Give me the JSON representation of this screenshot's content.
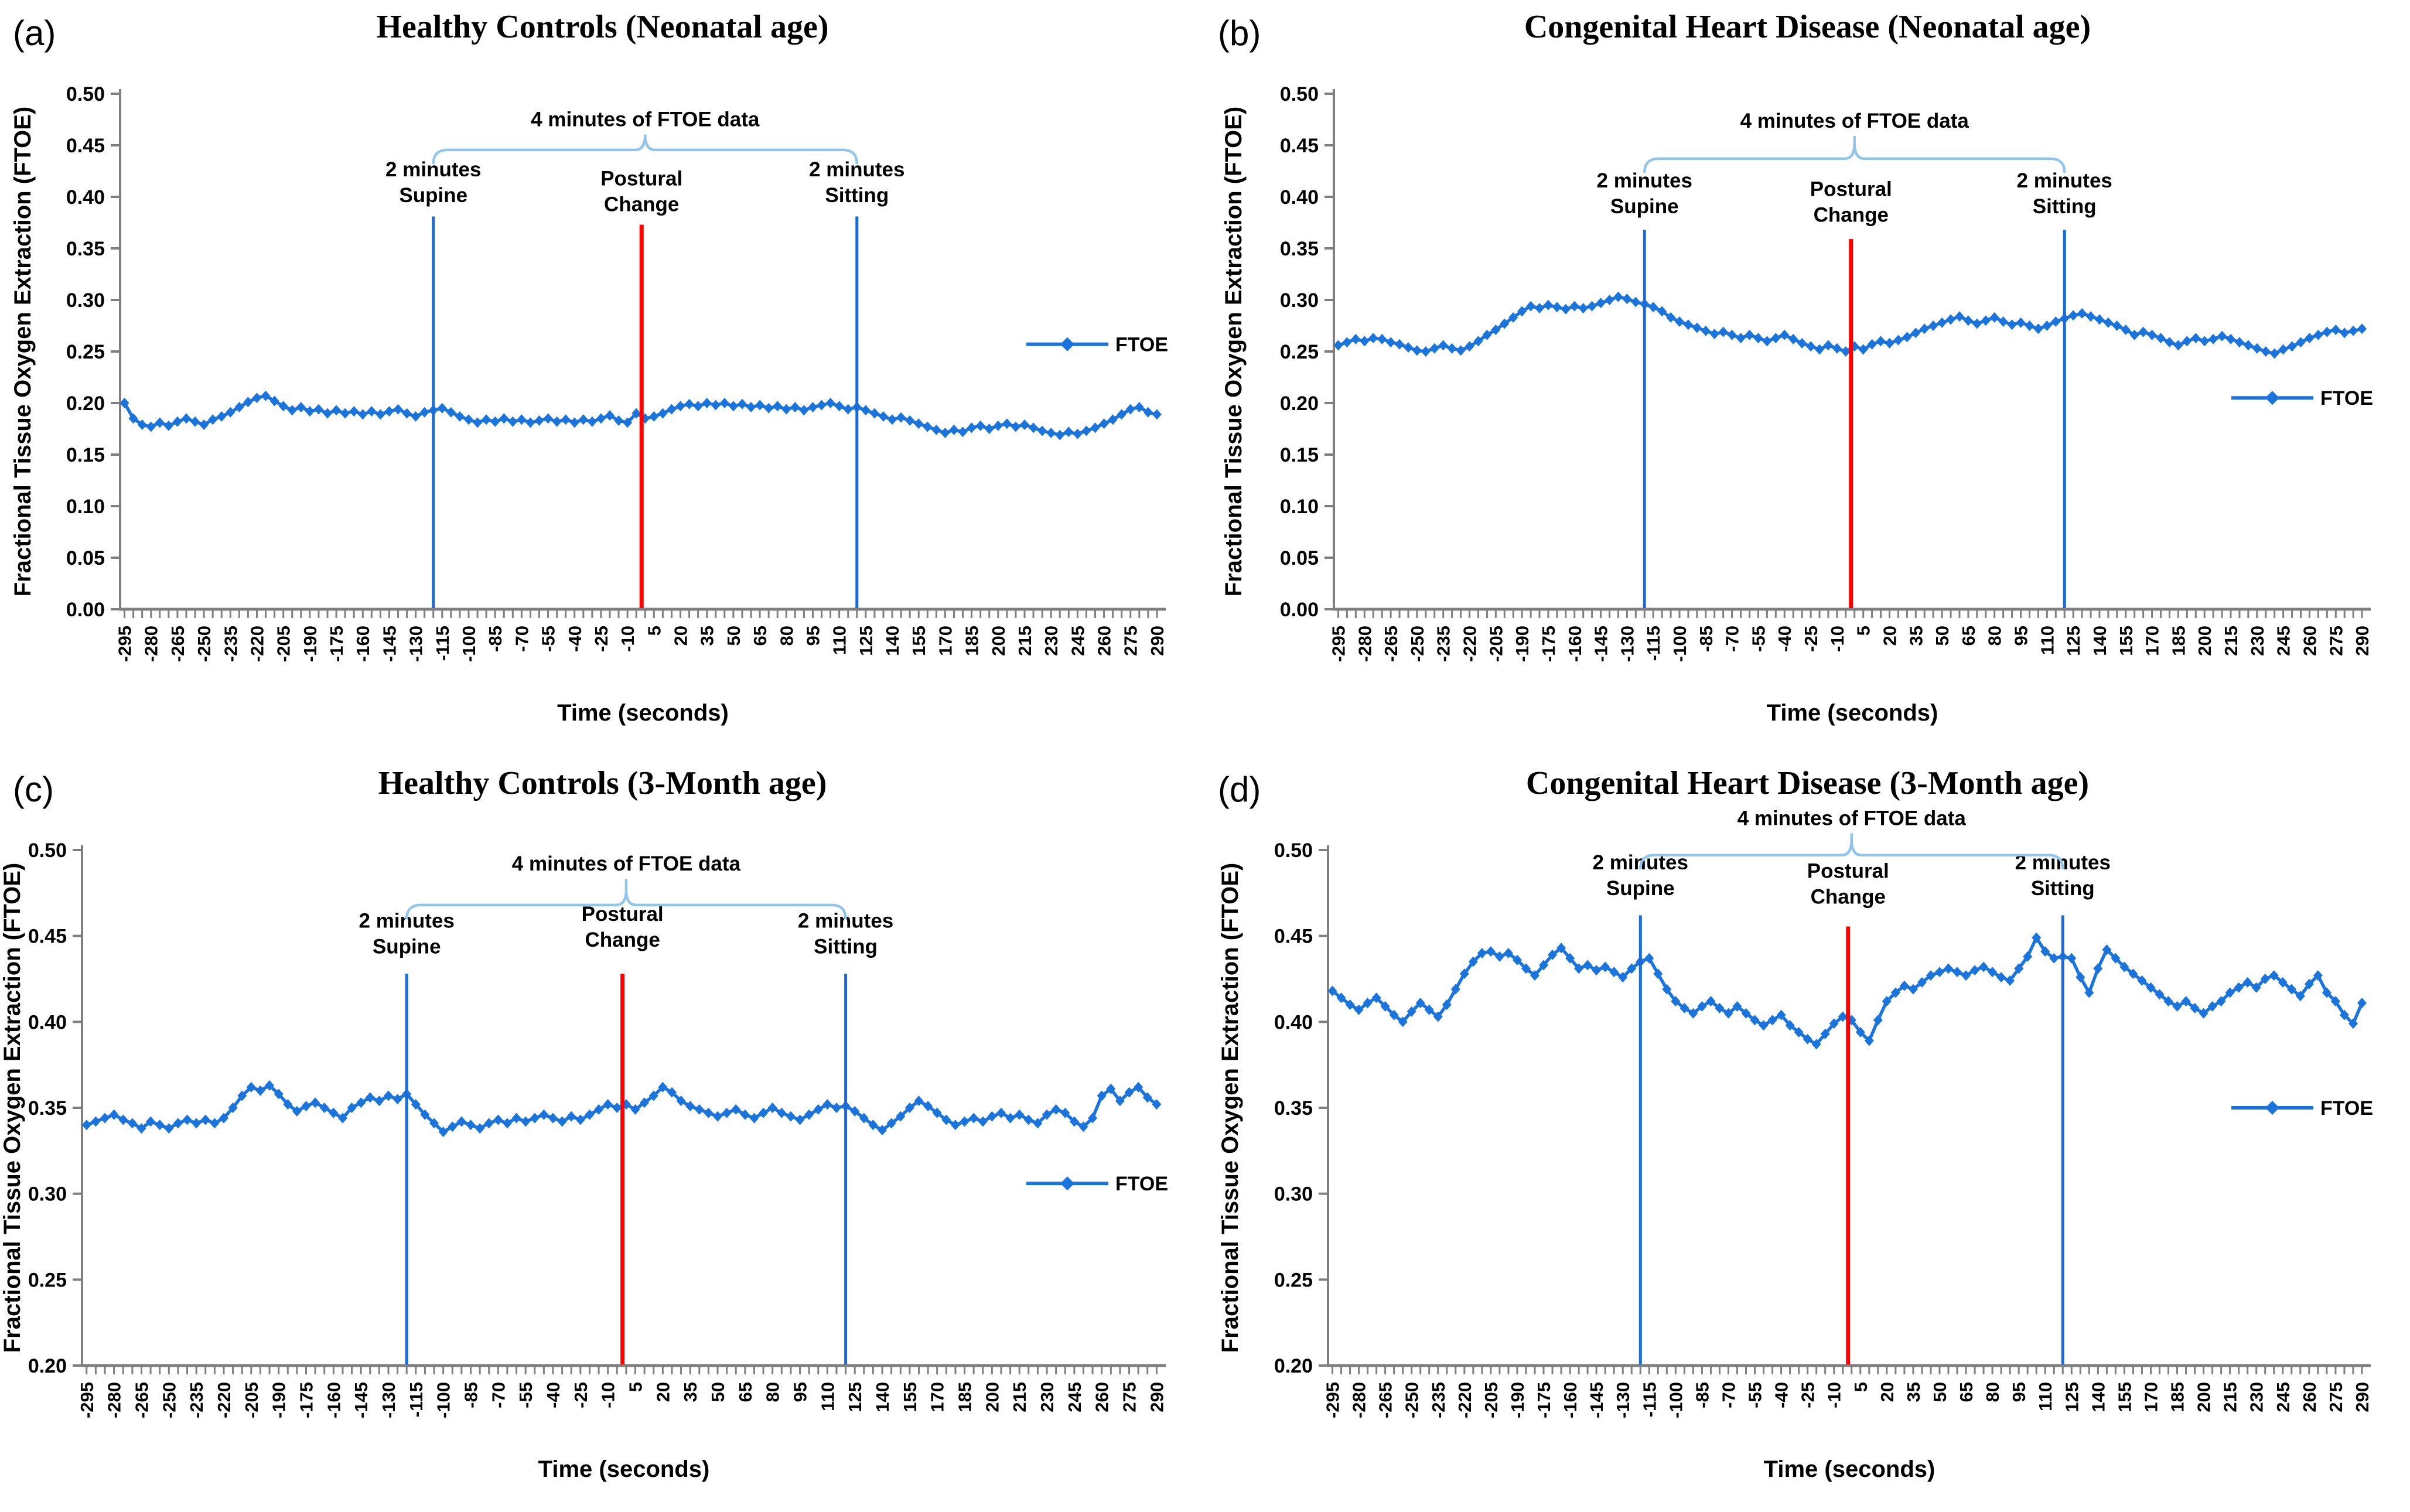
{
  "colors": {
    "data_blue": "#1b74dc",
    "marker_blue": "#1a6ad8",
    "marker_red": "#fe0000",
    "brace_blue": "#92c5ec",
    "axis_gray": "#7f7f7f",
    "text_black": "#000000"
  },
  "chart_data": [
    {
      "id": "a",
      "panel_letter": "(a)",
      "type": "line",
      "title": "Healthy Controls (Neonatal age)",
      "xlabel": "Time (seconds)",
      "ylabel": "Fractional Tissue Oxygen Extraction (FTOE)",
      "legend": [
        "FTOE"
      ],
      "legend_position": "right",
      "legend_y_value": 0.257,
      "xlim": [
        -297.5,
        295
      ],
      "ylim": [
        0.0,
        0.5
      ],
      "y_tick_step": 0.05,
      "x_tick_start": -295,
      "x_tick_step": 15,
      "x_minor_step": 5,
      "x_start": -295,
      "x_step": 5,
      "grid": false,
      "geom": {
        "left": 205,
        "ylabel_x": 52
      },
      "series": [
        {
          "name": "FTOE",
          "values": [
            0.2,
            0.185,
            0.179,
            0.177,
            0.181,
            0.178,
            0.182,
            0.185,
            0.182,
            0.179,
            0.184,
            0.187,
            0.191,
            0.196,
            0.201,
            0.205,
            0.207,
            0.202,
            0.197,
            0.193,
            0.196,
            0.192,
            0.194,
            0.19,
            0.193,
            0.19,
            0.192,
            0.189,
            0.192,
            0.189,
            0.192,
            0.194,
            0.19,
            0.187,
            0.191,
            0.193,
            0.195,
            0.191,
            0.187,
            0.184,
            0.181,
            0.184,
            0.182,
            0.185,
            0.182,
            0.184,
            0.181,
            0.183,
            0.185,
            0.182,
            0.184,
            0.181,
            0.184,
            0.182,
            0.185,
            0.188,
            0.183,
            0.181,
            0.19,
            0.185,
            0.187,
            0.19,
            0.194,
            0.197,
            0.199,
            0.197,
            0.2,
            0.198,
            0.2,
            0.197,
            0.199,
            0.196,
            0.198,
            0.195,
            0.197,
            0.194,
            0.196,
            0.193,
            0.196,
            0.198,
            0.2,
            0.197,
            0.194,
            0.196,
            0.193,
            0.19,
            0.187,
            0.184,
            0.186,
            0.183,
            0.18,
            0.177,
            0.174,
            0.171,
            0.174,
            0.172,
            0.176,
            0.178,
            0.175,
            0.178,
            0.18,
            0.177,
            0.179,
            0.176,
            0.173,
            0.171,
            0.169,
            0.172,
            0.17,
            0.173,
            0.176,
            0.18,
            0.184,
            0.189,
            0.194,
            0.196,
            0.191,
            0.189
          ]
        }
      ],
      "vertical_markers": [
        {
          "x": -120,
          "color_key": "marker_blue",
          "top": 0.381,
          "label": [
            "2 minutes",
            "Supine"
          ],
          "label_y": 0.412
        },
        {
          "x": -2,
          "color_key": "marker_red",
          "top": 0.373,
          "label": [
            "Postural",
            "Change"
          ],
          "label_y": 0.403
        },
        {
          "x": 120,
          "color_key": "marker_blue",
          "top": 0.381,
          "label": [
            "2 minutes",
            "Sitting"
          ],
          "label_y": 0.412
        }
      ],
      "brace": {
        "x1": -120,
        "x2": 120,
        "y": 0.4455,
        "label": "4 minutes of FTOE data",
        "label_y": 0.4685
      }
    },
    {
      "id": "b",
      "panel_letter": "(b)",
      "type": "line",
      "title": "Congenital Heart Disease (Neonatal age)",
      "xlabel": "Time (seconds)",
      "ylabel": "Fractional Tissue Oxygen Extraction (FTOE)",
      "legend": [
        "FTOE"
      ],
      "legend_position": "right",
      "legend_y_value": 0.205,
      "xlim": [
        -297.5,
        295
      ],
      "ylim": [
        0.0,
        0.5
      ],
      "y_tick_step": 0.05,
      "x_tick_start": -295,
      "x_tick_step": 15,
      "x_minor_step": 5,
      "x_start": -295,
      "x_step": 5,
      "grid": false,
      "geom": {
        "left": 220,
        "ylabel_x": 62
      },
      "series": [
        {
          "name": "FTOE",
          "values": [
            0.256,
            0.259,
            0.262,
            0.26,
            0.263,
            0.262,
            0.259,
            0.257,
            0.254,
            0.251,
            0.25,
            0.253,
            0.256,
            0.253,
            0.251,
            0.255,
            0.26,
            0.266,
            0.271,
            0.277,
            0.283,
            0.289,
            0.294,
            0.292,
            0.295,
            0.293,
            0.291,
            0.294,
            0.292,
            0.294,
            0.297,
            0.3,
            0.303,
            0.301,
            0.298,
            0.296,
            0.293,
            0.289,
            0.283,
            0.279,
            0.276,
            0.273,
            0.27,
            0.267,
            0.269,
            0.266,
            0.263,
            0.266,
            0.263,
            0.26,
            0.263,
            0.266,
            0.262,
            0.258,
            0.255,
            0.252,
            0.256,
            0.253,
            0.25,
            0.255,
            0.252,
            0.257,
            0.26,
            0.258,
            0.261,
            0.264,
            0.268,
            0.272,
            0.275,
            0.278,
            0.281,
            0.284,
            0.28,
            0.277,
            0.28,
            0.283,
            0.279,
            0.276,
            0.278,
            0.275,
            0.272,
            0.275,
            0.279,
            0.282,
            0.285,
            0.287,
            0.284,
            0.281,
            0.278,
            0.275,
            0.271,
            0.266,
            0.269,
            0.266,
            0.263,
            0.259,
            0.256,
            0.26,
            0.263,
            0.26,
            0.262,
            0.265,
            0.262,
            0.259,
            0.256,
            0.253,
            0.25,
            0.248,
            0.252,
            0.255,
            0.259,
            0.263,
            0.266,
            0.269,
            0.271,
            0.268,
            0.27,
            0.272
          ]
        }
      ],
      "vertical_markers": [
        {
          "x": -120,
          "color_key": "marker_blue",
          "top": 0.368,
          "label": [
            "2 minutes",
            "Supine"
          ],
          "label_y": 0.401
        },
        {
          "x": -2,
          "color_key": "marker_red",
          "top": 0.359,
          "label": [
            "Postural",
            "Change"
          ],
          "label_y": 0.393
        },
        {
          "x": 120,
          "color_key": "marker_blue",
          "top": 0.368,
          "label": [
            "2 minutes",
            "Sitting"
          ],
          "label_y": 0.401
        }
      ],
      "brace": {
        "x1": -120,
        "x2": 120,
        "y": 0.437,
        "label": "4 minutes of FTOE data",
        "label_y": 0.467
      }
    },
    {
      "id": "c",
      "panel_letter": "(c)",
      "type": "line",
      "title": "Healthy Controls (3-Month age)",
      "xlabel": "Time (seconds)",
      "ylabel": "Fractional Tissue Oxygen Extraction (FTOE)",
      "legend": [
        "FTOE"
      ],
      "legend_position": "right",
      "legend_y_value": 0.306,
      "xlim": [
        -297.5,
        295
      ],
      "ylim": [
        0.2,
        0.5
      ],
      "y_tick_step": 0.05,
      "x_tick_start": -295,
      "x_tick_step": 15,
      "x_minor_step": 5,
      "x_start": -295,
      "x_step": 5,
      "grid": false,
      "geom": {
        "left": 140,
        "ylabel_x": 34
      },
      "series": [
        {
          "name": "FTOE",
          "values": [
            0.34,
            0.342,
            0.344,
            0.346,
            0.343,
            0.341,
            0.338,
            0.342,
            0.34,
            0.338,
            0.341,
            0.343,
            0.341,
            0.343,
            0.341,
            0.344,
            0.35,
            0.357,
            0.362,
            0.36,
            0.363,
            0.358,
            0.352,
            0.348,
            0.351,
            0.353,
            0.35,
            0.347,
            0.344,
            0.35,
            0.353,
            0.356,
            0.354,
            0.357,
            0.355,
            0.358,
            0.352,
            0.346,
            0.341,
            0.336,
            0.339,
            0.342,
            0.34,
            0.338,
            0.341,
            0.343,
            0.341,
            0.344,
            0.342,
            0.344,
            0.346,
            0.344,
            0.342,
            0.345,
            0.343,
            0.346,
            0.349,
            0.352,
            0.35,
            0.352,
            0.349,
            0.353,
            0.357,
            0.362,
            0.359,
            0.354,
            0.351,
            0.349,
            0.347,
            0.345,
            0.347,
            0.349,
            0.346,
            0.344,
            0.347,
            0.35,
            0.347,
            0.345,
            0.343,
            0.346,
            0.349,
            0.352,
            0.35,
            0.351,
            0.348,
            0.344,
            0.34,
            0.337,
            0.341,
            0.345,
            0.35,
            0.354,
            0.351,
            0.347,
            0.343,
            0.34,
            0.342,
            0.344,
            0.342,
            0.345,
            0.347,
            0.344,
            0.346,
            0.343,
            0.341,
            0.346,
            0.349,
            0.347,
            0.342,
            0.339,
            0.344,
            0.357,
            0.361,
            0.354,
            0.359,
            0.362,
            0.356,
            0.352
          ]
        }
      ],
      "vertical_markers": [
        {
          "x": -120,
          "color_key": "marker_blue",
          "top": 0.428,
          "label": [
            "2 minutes",
            "Supine"
          ],
          "label_y": 0.45
        },
        {
          "x": -2,
          "color_key": "marker_red",
          "top": 0.428,
          "label": [
            "Postural",
            "Change"
          ],
          "label_y": 0.454
        },
        {
          "x": 120,
          "color_key": "marker_blue",
          "top": 0.428,
          "label": [
            "2 minutes",
            "Sitting"
          ],
          "label_y": 0.45
        }
      ],
      "brace": {
        "x1": -120,
        "x2": 120,
        "y": 0.468,
        "label": "4 minutes of FTOE data",
        "label_y": 0.488
      }
    },
    {
      "id": "d",
      "panel_letter": "(d)",
      "type": "line",
      "title": "Congenital Heart Disease (3-Month age)",
      "xlabel": "Time (seconds)",
      "ylabel": "Fractional Tissue Oxygen Extraction (FTOE)",
      "legend": [
        "FTOE"
      ],
      "legend_position": "right",
      "legend_y_value": 0.35,
      "xlim": [
        -297.5,
        295
      ],
      "ylim": [
        0.2,
        0.5
      ],
      "y_tick_step": 0.05,
      "x_tick_start": -295,
      "x_tick_step": 15,
      "x_minor_step": 5,
      "x_start": -295,
      "x_step": 5,
      "grid": false,
      "geom": {
        "left": 210,
        "ylabel_x": 56
      },
      "series": [
        {
          "name": "FTOE",
          "values": [
            0.418,
            0.414,
            0.41,
            0.407,
            0.411,
            0.414,
            0.409,
            0.404,
            0.4,
            0.406,
            0.411,
            0.407,
            0.403,
            0.41,
            0.419,
            0.428,
            0.435,
            0.44,
            0.441,
            0.438,
            0.44,
            0.436,
            0.431,
            0.427,
            0.433,
            0.439,
            0.443,
            0.437,
            0.431,
            0.433,
            0.43,
            0.432,
            0.429,
            0.426,
            0.431,
            0.435,
            0.437,
            0.428,
            0.419,
            0.412,
            0.408,
            0.405,
            0.409,
            0.412,
            0.408,
            0.405,
            0.409,
            0.405,
            0.401,
            0.398,
            0.401,
            0.404,
            0.398,
            0.394,
            0.39,
            0.387,
            0.393,
            0.399,
            0.403,
            0.401,
            0.394,
            0.389,
            0.401,
            0.412,
            0.417,
            0.421,
            0.419,
            0.423,
            0.427,
            0.429,
            0.431,
            0.429,
            0.427,
            0.43,
            0.432,
            0.429,
            0.426,
            0.424,
            0.431,
            0.438,
            0.449,
            0.441,
            0.437,
            0.438,
            0.437,
            0.426,
            0.417,
            0.431,
            0.442,
            0.437,
            0.432,
            0.428,
            0.424,
            0.42,
            0.416,
            0.412,
            0.409,
            0.412,
            0.408,
            0.405,
            0.409,
            0.412,
            0.417,
            0.42,
            0.423,
            0.42,
            0.425,
            0.427,
            0.423,
            0.419,
            0.415,
            0.422,
            0.427,
            0.417,
            0.412,
            0.404,
            0.399,
            0.411
          ]
        }
      ],
      "vertical_markers": [
        {
          "x": -120,
          "color_key": "marker_blue",
          "top": 0.462,
          "label": [
            "2 minutes",
            "Supine"
          ],
          "label_y": 0.484
        },
        {
          "x": -2,
          "color_key": "marker_red",
          "top": 0.4555,
          "label": [
            "Postural",
            "Change"
          ],
          "label_y": 0.479
        },
        {
          "x": 120,
          "color_key": "marker_blue",
          "top": 0.462,
          "label": [
            "2 minutes",
            "Sitting"
          ],
          "label_y": 0.484
        }
      ],
      "brace": {
        "x1": -120,
        "x2": 120,
        "y": 0.497,
        "label": "4 minutes of FTOE data",
        "label_y": 0.5145
      }
    }
  ]
}
